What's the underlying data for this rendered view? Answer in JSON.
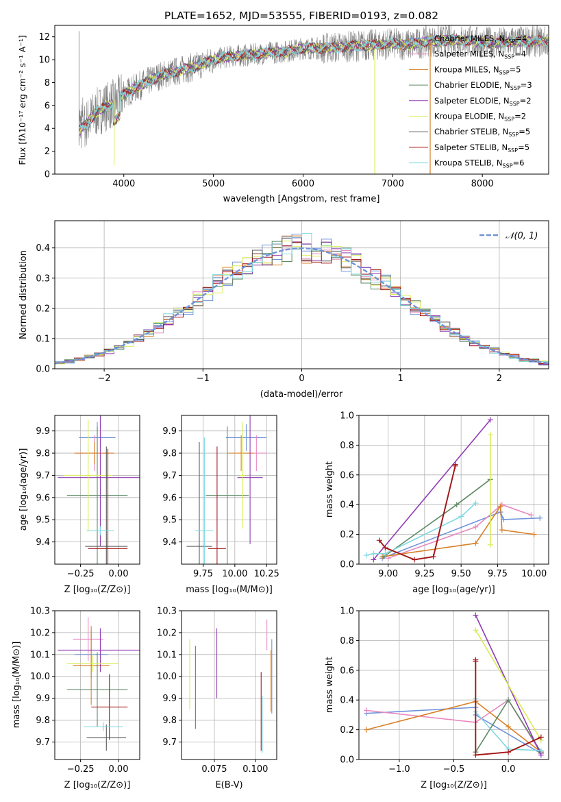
{
  "chart_data": [
    {
      "id": "spectrum",
      "type": "line",
      "title": "PLATE=1652, MJD=53555, FIBERID=0193, z=0.082",
      "xlabel": "wavelength [Angstrom, rest frame]",
      "ylabel": "Flux [fλ10⁻¹⁷ erg cm⁻² s⁻¹ A⁻¹]",
      "xlim": [
        3230,
        8740
      ],
      "ylim": [
        0,
        13
      ],
      "xticks": [
        "4000",
        "5000",
        "6000",
        "7000",
        "8000"
      ],
      "yticks": [
        "0",
        "2",
        "4",
        "6",
        "8",
        "10",
        "12"
      ],
      "grid": false,
      "legend_placement": "right",
      "data_curve_x": [
        3500,
        3600,
        3700,
        3800,
        3900,
        4000,
        4200,
        4400,
        4600,
        4800,
        5000,
        5200,
        5400,
        5600,
        5800,
        6000,
        6200,
        6400,
        6600,
        6800,
        7000,
        7200,
        7400,
        7600,
        7800,
        8000,
        8200,
        8400
      ],
      "data_curve_y": [
        3.8,
        4.6,
        5.4,
        5.9,
        6.2,
        7.0,
        7.8,
        8.6,
        9.0,
        9.4,
        10.0,
        10.3,
        10.4,
        10.6,
        10.7,
        11.0,
        11.0,
        11.1,
        11.2,
        11.3,
        11.4,
        11.3,
        11.6,
        11.7,
        11.7,
        11.5,
        11.5,
        11.6
      ],
      "series": [
        {
          "label": "Chabrier MILES, N",
          "sub": "SSP",
          "value": "=4",
          "color": "#6f93d9"
        },
        {
          "label": "Salpeter MILES, N",
          "sub": "SSP",
          "value": "=4",
          "color": "#e889c1"
        },
        {
          "label": "Kroupa MILES, N",
          "sub": "SSP",
          "value": "=5",
          "color": "#d98028"
        },
        {
          "label": "Chabrier ELODIE, N",
          "sub": "SSP",
          "value": "=3",
          "color": "#5c8a63"
        },
        {
          "label": "Salpeter ELODIE, N",
          "sub": "SSP",
          "value": "=2",
          "color": "#8f3bb5"
        },
        {
          "label": "Kroupa ELODIE, N",
          "sub": "SSP",
          "value": "=2",
          "color": "#d9ec57"
        },
        {
          "label": "Chabrier STELIB, N",
          "sub": "SSP",
          "value": "=5",
          "color": "#5a5a5a"
        },
        {
          "label": "Salpeter STELIB, N",
          "sub": "SSP",
          "value": "=5",
          "color": "#a4191a"
        },
        {
          "label": "Kroupa STELIB, N",
          "sub": "SSP",
          "value": "=6",
          "color": "#7ed8e2"
        }
      ]
    },
    {
      "id": "residuals",
      "type": "histogram",
      "xlabel": "(data-model)/error",
      "ylabel": "Normed distribution",
      "xlim": [
        -2.5,
        2.5
      ],
      "ylim": [
        0,
        0.49
      ],
      "xticks": [
        "−2",
        "−1",
        "0",
        "1",
        "2"
      ],
      "yticks": [
        "0.0",
        "0.1",
        "0.2",
        "0.3",
        "0.4"
      ],
      "grid": true,
      "legend": "𝒩(0, 1)",
      "legend_placement": "top-right",
      "reference_curve": "normal(0,1) pdf",
      "bin_width": 0.1
    },
    {
      "id": "age-vs-Z",
      "type": "errorbar",
      "xlabel": "Z [log₁₀(Z/Z⊙)]",
      "ylabel": "age  [log₁₀(age/yr)]",
      "xlim": [
        -0.42,
        0.14
      ],
      "ylim": [
        9.3,
        9.97
      ],
      "xticks": [
        "−0.25",
        "0.00"
      ],
      "xtick_values": [
        -0.25,
        0.0
      ],
      "yticks": [
        "9.4",
        "9.5",
        "9.6",
        "9.7",
        "9.8",
        "9.9"
      ],
      "ytick_values": [
        9.4,
        9.5,
        9.6,
        9.7,
        9.8,
        9.9
      ],
      "points": [
        {
          "x": -0.14,
          "y": 9.87,
          "xerr": 0.12,
          "yerr": 0.07,
          "color": "#6f93d9"
        },
        {
          "x": -0.16,
          "y": 9.8,
          "xerr": 0.13,
          "yerr": 0.08,
          "color": "#e889c1"
        },
        {
          "x": -0.16,
          "y": 9.8,
          "xerr": 0.13,
          "yerr": 0.05,
          "color": "#d98028"
        },
        {
          "x": -0.14,
          "y": 9.61,
          "xerr": 0.2,
          "yerr": 0.31,
          "color": "#5c8a63"
        },
        {
          "x": -0.12,
          "y": 9.69,
          "xerr": 0.28,
          "yerr": 0.31,
          "color": "#8f3bb5"
        },
        {
          "x": -0.2,
          "y": 9.7,
          "xerr": 0.16,
          "yerr": 0.25,
          "color": "#d9ec57"
        },
        {
          "x": -0.08,
          "y": 9.38,
          "xerr": 0.14,
          "yerr": 0.45,
          "color": "#5a5a5a"
        },
        {
          "x": -0.07,
          "y": 9.37,
          "xerr": 0.13,
          "yerr": 0.45,
          "color": "#a4191a"
        },
        {
          "x": -0.12,
          "y": 9.45,
          "xerr": 0.09,
          "yerr": 0.02,
          "color": "#7ed8e2"
        }
      ]
    },
    {
      "id": "age-vs-mass",
      "type": "errorbar",
      "xlabel": "mass [log₁₀(M/M⊙)]",
      "ylabel": "",
      "xlim": [
        9.58,
        10.33
      ],
      "ylim": [
        9.3,
        9.97
      ],
      "xticks": [
        "9.75",
        "10.00",
        "10.25"
      ],
      "xtick_values": [
        9.75,
        10.0,
        10.25
      ],
      "yticks": [
        "9.4",
        "9.5",
        "9.6",
        "9.7",
        "9.8",
        "9.9"
      ],
      "ytick_values": [
        9.4,
        9.5,
        9.6,
        9.7,
        9.8,
        9.9
      ],
      "points": [
        {
          "x": 10.09,
          "y": 9.87,
          "xerr": 0.16,
          "yerr": 0.06,
          "color": "#6f93d9"
        },
        {
          "x": 10.17,
          "y": 9.8,
          "xerr": 0.08,
          "yerr": 0.08,
          "color": "#e889c1"
        },
        {
          "x": 10.05,
          "y": 9.8,
          "xerr": 0.1,
          "yerr": 0.08,
          "color": "#d98028"
        },
        {
          "x": 9.94,
          "y": 9.61,
          "xerr": 0.17,
          "yerr": 0.31,
          "color": "#5c8a63"
        },
        {
          "x": 10.12,
          "y": 9.69,
          "xerr": 0.1,
          "yerr": 0.3,
          "color": "#8f3bb5"
        },
        {
          "x": 10.06,
          "y": 9.7,
          "xerr": 0.02,
          "yerr": 0.24,
          "color": "#d9ec57"
        },
        {
          "x": 9.72,
          "y": 9.38,
          "xerr": 0.1,
          "yerr": 0.47,
          "color": "#5a5a5a"
        },
        {
          "x": 9.86,
          "y": 9.37,
          "xerr": 0.07,
          "yerr": 0.46,
          "color": "#a4191a"
        },
        {
          "x": 9.76,
          "y": 9.45,
          "xerr": 0.07,
          "yerr": 0.42,
          "color": "#7ed8e2"
        }
      ]
    },
    {
      "id": "weight-vs-age",
      "type": "line",
      "xlabel": "age  [log₁₀(age/yr)]",
      "ylabel": "mass weight",
      "xlim": [
        8.8,
        10.1
      ],
      "ylim": [
        0,
        1
      ],
      "xticks": [
        "9.00",
        "9.25",
        "9.50",
        "9.75",
        "10.00"
      ],
      "xtick_values": [
        9.0,
        9.25,
        9.5,
        9.75,
        10.0
      ],
      "yticks": [
        "0.0",
        "0.2",
        "0.4",
        "0.6",
        "0.8",
        "1.0"
      ],
      "ytick_values": [
        0,
        0.2,
        0.4,
        0.6,
        0.8,
        1.0
      ],
      "grid": true,
      "series": [
        {
          "color": "#6f93d9",
          "x": [
            8.96,
            9.77,
            9.79,
            10.04
          ],
          "y": [
            0.04,
            0.35,
            0.3,
            0.31
          ]
        },
        {
          "color": "#e889c1",
          "x": [
            9.0,
            9.6,
            9.78,
            9.98
          ],
          "y": [
            0.04,
            0.25,
            0.4,
            0.33
          ]
        },
        {
          "color": "#d98028",
          "x": [
            8.96,
            9.6,
            9.77,
            9.78,
            10.0
          ],
          "y": [
            0.05,
            0.14,
            0.39,
            0.23,
            0.2
          ]
        },
        {
          "color": "#5c8a63",
          "x": [
            8.97,
            9.47,
            9.7
          ],
          "y": [
            0.05,
            0.4,
            0.57
          ]
        },
        {
          "color": "#8f3bb5",
          "x": [
            8.9,
            9.7
          ],
          "y": [
            0.03,
            0.97
          ]
        },
        {
          "color": "#d9ec57",
          "x": [
            9.7,
            9.7
          ],
          "y": [
            0.13,
            0.87
          ]
        },
        {
          "color": "#7ed8e2",
          "x": [
            8.85,
            8.9,
            8.98,
            9.5,
            9.6
          ],
          "y": [
            0.06,
            0.07,
            0.07,
            0.32,
            0.41
          ]
        },
        {
          "color": "#a4191a",
          "x": [
            8.94,
            8.98,
            9.18,
            9.31,
            9.46,
            9.46
          ],
          "y": [
            0.16,
            0.11,
            0.03,
            0.05,
            0.66,
            0.67
          ]
        }
      ]
    },
    {
      "id": "mass-vs-Z",
      "type": "errorbar",
      "xlabel": "Z [log₁₀(Z/Z⊙)]",
      "ylabel": "mass [log₁₀(M/M⊙)]",
      "xlim": [
        -0.42,
        0.14
      ],
      "ylim": [
        9.62,
        10.3
      ],
      "xticks": [
        "−0.25",
        "0.00"
      ],
      "xtick_values": [
        -0.25,
        0.0
      ],
      "yticks": [
        "9.7",
        "9.8",
        "9.9",
        "10.0",
        "10.1",
        "10.2",
        "10.3"
      ],
      "ytick_values": [
        9.7,
        9.8,
        9.9,
        10.0,
        10.1,
        10.2,
        10.3
      ],
      "points": [
        {
          "x": -0.18,
          "y": 10.1,
          "xerr": 0.11,
          "yerr": 0.11,
          "color": "#6f93d9"
        },
        {
          "x": -0.2,
          "y": 10.17,
          "xerr": 0.1,
          "yerr": 0.1,
          "color": "#e889c1"
        },
        {
          "x": -0.18,
          "y": 10.05,
          "xerr": 0.12,
          "yerr": 0.18,
          "color": "#d98028"
        },
        {
          "x": -0.14,
          "y": 9.94,
          "xerr": 0.2,
          "yerr": 0.17,
          "color": "#5c8a63"
        },
        {
          "x": -0.12,
          "y": 10.12,
          "xerr": 0.28,
          "yerr": 0.1,
          "color": "#8f3bb5"
        },
        {
          "x": -0.17,
          "y": 10.06,
          "xerr": 0.17,
          "yerr": 0.04,
          "color": "#d9ec57"
        },
        {
          "x": -0.08,
          "y": 9.72,
          "xerr": 0.13,
          "yerr": 0.06,
          "color": "#5a5a5a"
        },
        {
          "x": -0.06,
          "y": 9.86,
          "xerr": 0.12,
          "yerr": 0.15,
          "color": "#a4191a"
        },
        {
          "x": -0.1,
          "y": 9.77,
          "xerr": 0.13,
          "yerr": 0.02,
          "color": "#7ed8e2"
        }
      ]
    },
    {
      "id": "mass-vs-EBV",
      "type": "errorbar",
      "xlabel": "E(B-V)",
      "ylabel": "",
      "xlim": [
        0.055,
        0.113
      ],
      "ylim": [
        9.62,
        10.3
      ],
      "xticks": [
        "0.075",
        "0.100"
      ],
      "xtick_values": [
        0.075,
        0.1
      ],
      "yticks": [
        "9.7",
        "9.8",
        "9.9",
        "10.0",
        "10.1",
        "10.2",
        "10.3"
      ],
      "ytick_values": [
        9.7,
        9.8,
        9.9,
        10.0,
        10.1,
        10.2,
        10.3
      ],
      "points": [
        {
          "x": 0.06,
          "y": 10.01,
          "xerr": 0,
          "yerr": 0.16,
          "color": "#d9ec57"
        },
        {
          "x": 0.0635,
          "y": 9.95,
          "xerr": 0,
          "yerr": 0.19,
          "color": "#5c8a63"
        },
        {
          "x": 0.0765,
          "y": 10.06,
          "xerr": 0,
          "yerr": 0.16,
          "color": "#8f3bb5"
        },
        {
          "x": 0.1035,
          "y": 9.84,
          "xerr": 0,
          "yerr": 0.18,
          "color": "#a4191a"
        },
        {
          "x": 0.1042,
          "y": 9.78,
          "xerr": 0,
          "yerr": 0.13,
          "color": "#7ed8e2"
        },
        {
          "x": 0.107,
          "y": 10.19,
          "xerr": 0,
          "yerr": 0.07,
          "color": "#e889c1"
        },
        {
          "x": 0.1095,
          "y": 9.98,
          "xerr": 0,
          "yerr": 0.14,
          "color": "#d98028"
        },
        {
          "x": 0.11,
          "y": 10.0,
          "xerr": 0,
          "yerr": 0.17,
          "color": "#6f93d9"
        }
      ]
    },
    {
      "id": "weight-vs-Z",
      "type": "line",
      "xlabel": "Z [log₁₀(Z/Z⊙)]",
      "ylabel": "mass weight",
      "xlim": [
        -1.37,
        0.37
      ],
      "ylim": [
        0,
        1
      ],
      "xticks": [
        "−1.0",
        "−0.5",
        "0.0"
      ],
      "xtick_values": [
        -1.0,
        -0.5,
        0.0
      ],
      "yticks": [
        "0.0",
        "0.2",
        "0.4",
        "0.6",
        "0.8",
        "1.0"
      ],
      "ytick_values": [
        0,
        0.2,
        0.4,
        0.6,
        0.8,
        1.0
      ],
      "grid": true,
      "series": [
        {
          "color": "#6f93d9",
          "x": [
            -1.3,
            -0.3,
            -0.3,
            0.3
          ],
          "y": [
            0.31,
            0.35,
            0.3,
            0.04
          ]
        },
        {
          "color": "#e889c1",
          "x": [
            -1.3,
            -0.3,
            0.0,
            0.3
          ],
          "y": [
            0.33,
            0.25,
            0.4,
            0.04
          ]
        },
        {
          "color": "#d98028",
          "x": [
            -1.3,
            -0.3,
            0.0,
            0.3
          ],
          "y": [
            0.2,
            0.39,
            0.22,
            0.05
          ]
        },
        {
          "color": "#5c8a63",
          "x": [
            -0.3,
            0.0,
            0.3
          ],
          "y": [
            0.05,
            0.4,
            0.05
          ]
        },
        {
          "color": "#8f3bb5",
          "x": [
            -0.3,
            0.3
          ],
          "y": [
            0.97,
            0.03
          ]
        },
        {
          "color": "#d9ec57",
          "x": [
            -0.3,
            0.3
          ],
          "y": [
            0.87,
            0.13
          ]
        },
        {
          "color": "#7ed8e2",
          "x": [
            -0.3,
            -0.3,
            0.0,
            0.3
          ],
          "y": [
            0.41,
            0.32,
            0.07,
            0.06
          ]
        },
        {
          "color": "#a4191a",
          "x": [
            -0.3,
            -0.3,
            -0.3,
            0.0,
            0.3
          ],
          "y": [
            0.67,
            0.66,
            0.03,
            0.05,
            0.15
          ]
        }
      ]
    }
  ]
}
